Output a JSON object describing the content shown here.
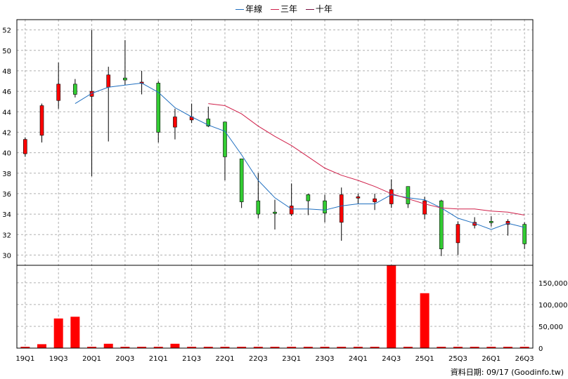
{
  "chart_data": {
    "type": "candlestick",
    "legend": [
      {
        "label": "年線",
        "color": "#1f6fc0"
      },
      {
        "label": "三年",
        "color": "#d0204a"
      },
      {
        "label": "十年",
        "color": "#7a1040"
      }
    ],
    "x_labels": [
      "19Q1",
      "19Q3",
      "20Q1",
      "20Q3",
      "21Q1",
      "21Q3",
      "22Q1",
      "22Q3",
      "23Q1",
      "23Q3",
      "24Q1",
      "24Q3",
      "25Q1",
      "25Q3",
      "26Q1",
      "26Q3"
    ],
    "price_yticks": [
      30,
      32,
      34,
      36,
      38,
      40,
      42,
      44,
      46,
      48,
      50,
      52
    ],
    "volume_yticks": [
      "0",
      "50,000",
      "100,000",
      "150,000"
    ],
    "price_range": [
      29,
      53
    ],
    "volume_range": [
      0,
      190000
    ],
    "candles": [
      {
        "o": 39.9,
        "h": 41.5,
        "l": 39.6,
        "c": 41.3
      },
      {
        "o": 41.7,
        "h": 44.8,
        "l": 41.0,
        "c": 44.6
      },
      {
        "o": 45.1,
        "h": 48.8,
        "l": 44.3,
        "c": 46.7
      },
      {
        "o": 46.7,
        "h": 47.2,
        "l": 45.4,
        "c": 45.7
      },
      {
        "o": 45.5,
        "h": 52.0,
        "l": 37.7,
        "c": 46.0
      },
      {
        "o": 46.4,
        "h": 48.4,
        "l": 41.1,
        "c": 47.6
      },
      {
        "o": 47.3,
        "h": 51.0,
        "l": 46.6,
        "c": 47.1
      },
      {
        "o": 46.8,
        "h": 48.0,
        "l": 45.7,
        "c": 46.9
      },
      {
        "o": 46.8,
        "h": 47.0,
        "l": 41.0,
        "c": 42.0
      },
      {
        "o": 42.5,
        "h": 44.3,
        "l": 41.3,
        "c": 43.5
      },
      {
        "o": 43.2,
        "h": 44.8,
        "l": 42.9,
        "c": 43.5
      },
      {
        "o": 43.3,
        "h": 44.5,
        "l": 42.5,
        "c": 42.6
      },
      {
        "o": 43.0,
        "h": 43.0,
        "l": 37.3,
        "c": 39.6
      },
      {
        "o": 39.4,
        "h": 39.4,
        "l": 34.6,
        "c": 35.2
      },
      {
        "o": 35.3,
        "h": 38.0,
        "l": 33.6,
        "c": 34.0
      },
      {
        "o": 34.2,
        "h": 35.4,
        "l": 32.5,
        "c": 34.1
      },
      {
        "o": 34.0,
        "h": 37.0,
        "l": 33.8,
        "c": 34.8
      },
      {
        "o": 35.9,
        "h": 36.0,
        "l": 33.9,
        "c": 35.3
      },
      {
        "o": 35.3,
        "h": 35.9,
        "l": 33.2,
        "c": 34.1
      },
      {
        "o": 33.2,
        "h": 36.6,
        "l": 31.4,
        "c": 35.9
      },
      {
        "o": 35.6,
        "h": 36.0,
        "l": 35.0,
        "c": 35.7
      },
      {
        "o": 35.2,
        "h": 36.0,
        "l": 34.4,
        "c": 35.5
      },
      {
        "o": 35.0,
        "h": 37.4,
        "l": 34.6,
        "c": 36.4
      },
      {
        "o": 36.7,
        "h": 36.7,
        "l": 34.6,
        "c": 35.0
      },
      {
        "o": 34.0,
        "h": 35.7,
        "l": 33.5,
        "c": 35.3
      },
      {
        "o": 35.3,
        "h": 35.4,
        "l": 29.9,
        "c": 30.6
      },
      {
        "o": 31.2,
        "h": 33.3,
        "l": 30.0,
        "c": 33.0
      },
      {
        "o": 32.9,
        "h": 33.7,
        "l": 32.6,
        "c": 33.2
      },
      {
        "o": 33.3,
        "h": 33.8,
        "l": 32.8,
        "c": 33.2
      },
      {
        "o": 33.0,
        "h": 33.5,
        "l": 31.9,
        "c": 33.3
      },
      {
        "o": 33.0,
        "h": 33.2,
        "l": 30.6,
        "c": 31.1
      }
    ],
    "annual_line": [
      {
        "i": 3,
        "v": 44.8
      },
      {
        "i": 4,
        "v": 45.8
      },
      {
        "i": 5,
        "v": 46.4
      },
      {
        "i": 6,
        "v": 46.6
      },
      {
        "i": 7,
        "v": 46.8
      },
      {
        "i": 8,
        "v": 45.9
      },
      {
        "i": 9,
        "v": 44.4
      },
      {
        "i": 10,
        "v": 43.5
      },
      {
        "i": 11,
        "v": 42.7
      },
      {
        "i": 12,
        "v": 42.1
      },
      {
        "i": 13,
        "v": 39.8
      },
      {
        "i": 14,
        "v": 37.3
      },
      {
        "i": 15,
        "v": 35.6
      },
      {
        "i": 16,
        "v": 34.5
      },
      {
        "i": 17,
        "v": 34.5
      },
      {
        "i": 18,
        "v": 34.4
      },
      {
        "i": 19,
        "v": 34.8
      },
      {
        "i": 20,
        "v": 35.0
      },
      {
        "i": 21,
        "v": 35.0
      },
      {
        "i": 22,
        "v": 35.9
      },
      {
        "i": 23,
        "v": 35.6
      },
      {
        "i": 24,
        "v": 35.4
      },
      {
        "i": 25,
        "v": 34.6
      },
      {
        "i": 26,
        "v": 33.6
      },
      {
        "i": 27,
        "v": 33.1
      },
      {
        "i": 28,
        "v": 32.5
      },
      {
        "i": 29,
        "v": 33.1
      },
      {
        "i": 30,
        "v": 32.7
      }
    ],
    "three_year_line": [
      {
        "i": 11,
        "v": 44.8
      },
      {
        "i": 12,
        "v": 44.6
      },
      {
        "i": 13,
        "v": 43.8
      },
      {
        "i": 14,
        "v": 42.6
      },
      {
        "i": 15,
        "v": 41.6
      },
      {
        "i": 16,
        "v": 40.7
      },
      {
        "i": 17,
        "v": 39.6
      },
      {
        "i": 18,
        "v": 38.5
      },
      {
        "i": 19,
        "v": 37.8
      },
      {
        "i": 20,
        "v": 37.3
      },
      {
        "i": 21,
        "v": 36.7
      },
      {
        "i": 22,
        "v": 36.0
      },
      {
        "i": 23,
        "v": 35.5
      },
      {
        "i": 24,
        "v": 35.0
      },
      {
        "i": 25,
        "v": 34.6
      },
      {
        "i": 26,
        "v": 34.5
      },
      {
        "i": 27,
        "v": 34.5
      },
      {
        "i": 28,
        "v": 34.3
      },
      {
        "i": 29,
        "v": 34.2
      },
      {
        "i": 30,
        "v": 33.9
      }
    ],
    "volumes": [
      3000,
      9000,
      68000,
      72000,
      3000,
      10000,
      3000,
      3000,
      3000,
      10000,
      3000,
      3000,
      3000,
      3000,
      3000,
      3000,
      3000,
      3000,
      3000,
      3000,
      3000,
      3000,
      190000,
      3000,
      126000,
      3000,
      3000,
      3000,
      3000,
      3000,
      3000
    ],
    "credit": "資料日期: 09/17  (Goodinfo.tw)"
  }
}
